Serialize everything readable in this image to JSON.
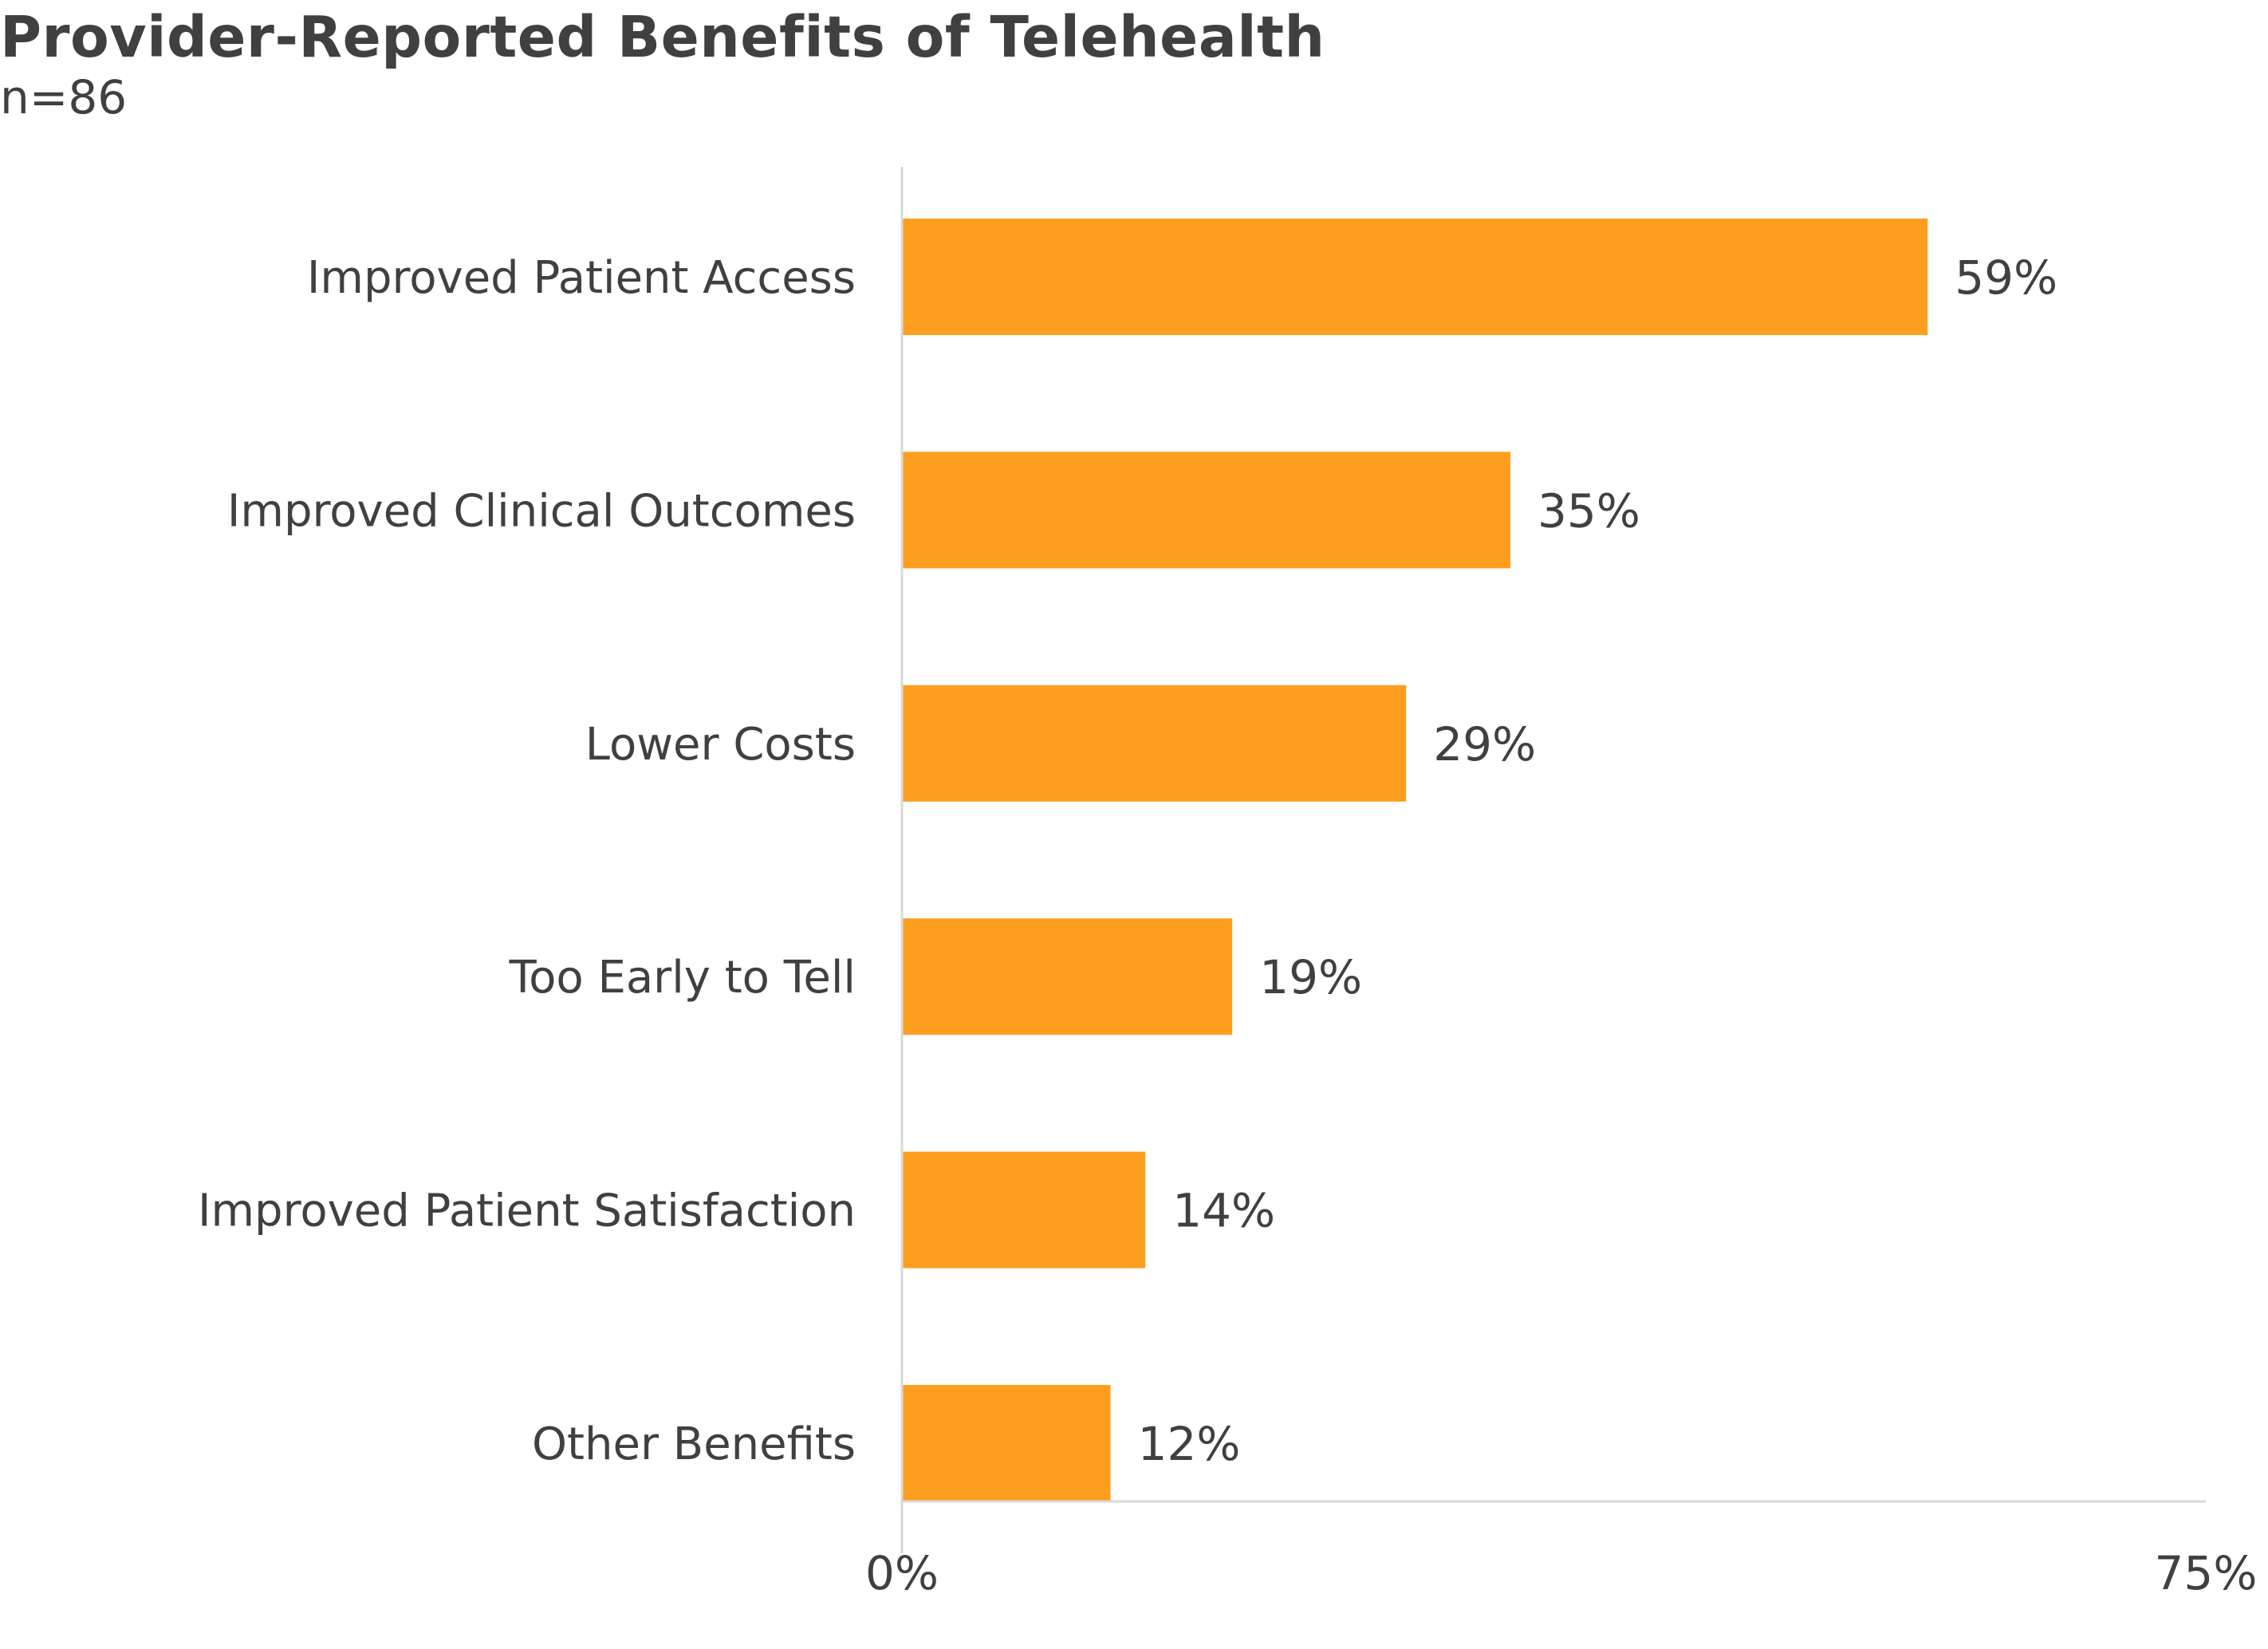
{
  "title": "Provider-Reported Benefits of Telehealth",
  "subtitle": "n=86",
  "colors": {
    "bar": "#FD9E1F",
    "text": "#404040",
    "axis": "#D9D9D9"
  },
  "chart_data": {
    "type": "bar",
    "orientation": "horizontal",
    "title": "Provider-Reported Benefits of Telehealth",
    "subtitle": "n=86",
    "categories": [
      "Improved Patient Access",
      "Improved Clinical Outcomes",
      "Lower Costs",
      "Too Early to Tell",
      "Improved Patient Satisfaction",
      "Other Benefits"
    ],
    "values": [
      59,
      35,
      29,
      19,
      14,
      12
    ],
    "value_labels": [
      "59%",
      "35%",
      "29%",
      "19%",
      "14%",
      "12%"
    ],
    "unit": "%",
    "xlabel": "",
    "ylabel": "",
    "xlim": [
      0,
      75
    ],
    "x_tick_labels": [
      "0%",
      "75%"
    ],
    "grid": false,
    "legend": "none"
  }
}
